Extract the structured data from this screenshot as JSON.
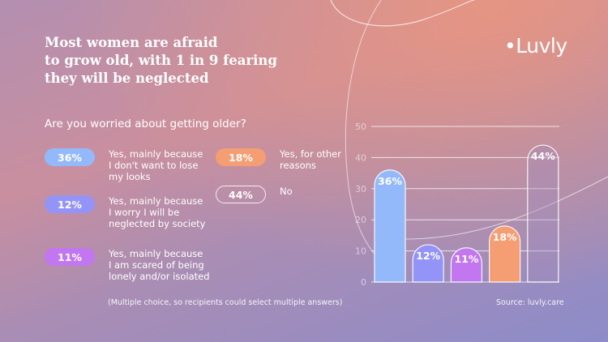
{
  "title_lines": [
    "Most women are afraid",
    "to grow old, with 1 in 9 fearing",
    "they will be neglected"
  ],
  "logo": "•Luvly",
  "question": "Are you worried about getting older?",
  "legend": [
    {
      "value": "36%",
      "lines": [
        "Yes, mainly because",
        "I don't want to lose",
        "my looks"
      ],
      "color": "#93b9fb"
    },
    {
      "value": "12%",
      "lines": [
        "Yes, mainly because",
        "I worry I will be",
        "neglected by society"
      ],
      "color": "#9494f8"
    },
    {
      "value": "11%",
      "lines": [
        "Yes, mainly because",
        "I am scared of being",
        "lonely and/or isolated"
      ],
      "color": "#c276f0"
    },
    {
      "value": "18%",
      "lines": [
        "Yes, for other",
        "reasons"
      ],
      "color": "#f59d73"
    },
    {
      "value": "44%",
      "lines": [
        "No"
      ],
      "color": "outline"
    }
  ],
  "footnote": "(Multiple choice, so recipients could select multiple answers)",
  "source": "Source: luvly.care",
  "chart_data": {
    "type": "bar",
    "categories": [
      "Yes, mainly because I don't want to lose my looks",
      "Yes, mainly because I worry I will be neglected by society",
      "Yes, mainly because I am scared of being lonely and/or isolated",
      "Yes, for other reasons",
      "No"
    ],
    "values": [
      36,
      12,
      11,
      18,
      44
    ],
    "labels": [
      "36%",
      "12%",
      "11%",
      "18%",
      "44%"
    ],
    "colors": [
      "#93b9fb",
      "#9494f8",
      "#c276f0",
      "#f59d73",
      "none"
    ],
    "yticks": [
      "0",
      "10",
      "20",
      "30",
      "40",
      "50"
    ],
    "ylim": [
      0,
      50
    ],
    "grid": true
  }
}
